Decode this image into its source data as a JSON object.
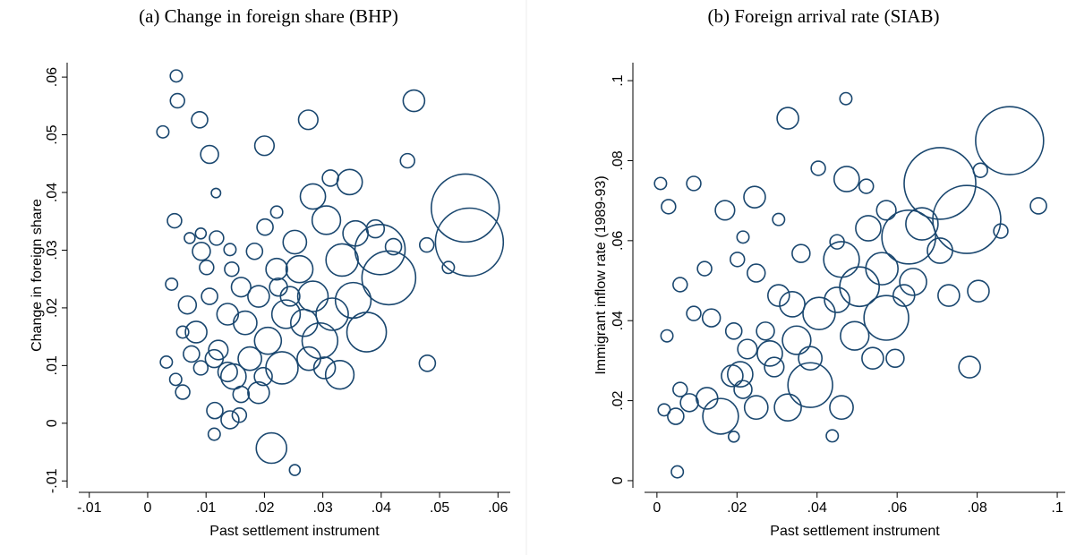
{
  "chart_data": [
    {
      "type": "bubble",
      "title": "(a) Change in foreign share (BHP)",
      "x_label": "Past settlement instrument",
      "y_label": "Change in foreign share",
      "color": "#1a476f",
      "xlim": [
        -0.0118,
        0.0621
      ],
      "ylim": [
        -0.0112,
        0.0625
      ],
      "xticks": [
        {
          "value": -0.01,
          "label": "-.01"
        },
        0,
        {
          "value": 0.01,
          "label": ".01"
        },
        {
          "value": 0.02,
          "label": ".02"
        },
        {
          "value": 0.03,
          "label": ".03"
        },
        {
          "value": 0.04,
          "label": ".04"
        },
        {
          "value": 0.05,
          "label": ".05"
        },
        {
          "value": 0.06,
          "label": ".06"
        }
      ],
      "yticks": [
        {
          "value": -0.01,
          "label": "-.01"
        },
        0,
        {
          "value": 0.01,
          "label": ".01"
        },
        {
          "value": 0.02,
          "label": ".02"
        },
        {
          "value": 0.03,
          "label": ".03"
        },
        {
          "value": 0.04,
          "label": ".04"
        },
        {
          "value": 0.05,
          "label": ".05"
        },
        {
          "value": 0.06,
          "label": ".06"
        }
      ],
      "x": [
        0.0049,
        0.0051,
        0.0026,
        0.0089,
        0.0106,
        0.02,
        0.0275,
        0.0456,
        0.0445,
        0.0117,
        0.0046,
        0.0201,
        0.0221,
        0.0346,
        0.0283,
        0.0313,
        0.0544,
        0.0551,
        0.0398,
        0.0413,
        0.0478,
        0.0515,
        0.0479,
        0.0252,
        0.0212,
        0.0115,
        0.0114,
        0.0141,
        0.0157,
        0.019,
        0.0041,
        0.0032,
        0.0048,
        0.006,
        0.0072,
        0.0092,
        0.0101,
        0.0118,
        0.0141,
        0.0091,
        0.0068,
        0.0083,
        0.0106,
        0.0121,
        0.0147,
        0.0167,
        0.019,
        0.0206,
        0.023,
        0.0237,
        0.026,
        0.0283,
        0.0295,
        0.0316,
        0.0333,
        0.0329,
        0.0303,
        0.0352,
        0.0375,
        0.0356,
        0.0306,
        0.0252,
        0.0221,
        0.0183,
        0.016,
        0.0137,
        0.0114,
        0.0091,
        0.006,
        0.0075,
        0.0175,
        0.0198,
        0.0268,
        0.0276,
        0.016,
        0.0137,
        0.0224,
        0.0244,
        0.0144,
        0.039,
        0.0421
      ],
      "y": [
        0.0602,
        0.0559,
        0.0505,
        0.0526,
        0.0466,
        0.0481,
        0.0526,
        0.0559,
        0.0455,
        0.0399,
        0.0351,
        0.034,
        0.0366,
        0.0418,
        0.0393,
        0.0425,
        0.0373,
        0.0314,
        0.0301,
        0.0252,
        0.0309,
        0.027,
        0.0104,
        -0.0081,
        -0.0043,
        0.0022,
        -0.0019,
        0.0006,
        0.0014,
        0.0053,
        0.0241,
        0.0106,
        0.0076,
        0.0054,
        0.0321,
        0.0298,
        0.027,
        0.0321,
        0.0301,
        0.0329,
        0.0205,
        0.0158,
        0.022,
        0.0127,
        0.0081,
        0.0174,
        0.022,
        0.0143,
        0.0096,
        0.0189,
        0.0267,
        0.022,
        0.0143,
        0.0189,
        0.0283,
        0.0084,
        0.0096,
        0.0213,
        0.0158,
        0.0329,
        0.0352,
        0.0314,
        0.0267,
        0.0298,
        0.0236,
        0.0189,
        0.0112,
        0.0096,
        0.0158,
        0.012,
        0.0112,
        0.0081,
        0.0174,
        0.0112,
        0.005,
        0.0089,
        0.0236,
        0.022,
        0.0267,
        0.0337,
        0.0306
      ],
      "sizes": [
        5,
        7,
        5,
        9,
        11,
        13,
        13,
        16,
        7,
        3,
        7,
        9,
        5,
        22,
        22,
        9,
        160,
        160,
        87,
        100,
        7,
        5,
        9,
        4,
        32,
        9,
        5,
        11,
        7,
        16,
        5,
        5,
        5,
        7,
        4,
        11,
        7,
        7,
        5,
        4,
        11,
        16,
        9,
        13,
        22,
        19,
        16,
        25,
        36,
        28,
        25,
        32,
        44,
        36,
        36,
        28,
        16,
        44,
        54,
        22,
        28,
        19,
        16,
        9,
        13,
        16,
        11,
        7,
        5,
        9,
        19,
        11,
        25,
        19,
        9,
        13,
        11,
        13,
        7,
        11,
        9
      ]
    },
    {
      "type": "bubble",
      "title": "(b) Foreign arrival rate (SIAB)",
      "x_label": "Past settlement instrument",
      "y_label": "Immigrant inflow rate (1989-93)",
      "color": "#1a476f",
      "xlim": [
        -0.0031,
        0.102
      ],
      "ylim": [
        -0.0018,
        0.1045
      ],
      "xticks": [
        0,
        {
          "value": 0.02,
          "label": ".02"
        },
        {
          "value": 0.04,
          "label": ".04"
        },
        {
          "value": 0.06,
          "label": ".06"
        },
        {
          "value": 0.08,
          "label": ".08"
        },
        {
          "value": 0.1,
          "label": ".1"
        }
      ],
      "yticks": [
        0,
        {
          "value": 0.02,
          "label": ".02"
        },
        {
          "value": 0.04,
          "label": ".04"
        },
        {
          "value": 0.06,
          "label": ".06"
        },
        {
          "value": 0.08,
          "label": ".08"
        },
        {
          "value": 0.1,
          "label": ".1"
        }
      ],
      "x": [
        0.0881,
        0.0707,
        0.0774,
        0.0629,
        0.0327,
        0.0472,
        0.0474,
        0.0403,
        0.0244,
        0.017,
        0.0092,
        0.0009,
        0.0029,
        0.0051,
        0.0953,
        0.0803,
        0.0781,
        0.0859,
        0.0808,
        0.0528,
        0.0573,
        0.0523,
        0.0461,
        0.0438,
        0.0461,
        0.0506,
        0.0562,
        0.0573,
        0.064,
        0.0707,
        0.0662,
        0.0405,
        0.0383,
        0.0327,
        0.0349,
        0.0304,
        0.0282,
        0.0248,
        0.0215,
        0.0159,
        0.0188,
        0.0125,
        0.0081,
        0.0047,
        0.0018,
        0.0058,
        0.0025,
        0.0092,
        0.0136,
        0.0192,
        0.0226,
        0.0271,
        0.0192,
        0.0383,
        0.045,
        0.0494,
        0.0539,
        0.0595,
        0.0617,
        0.0729,
        0.0248,
        0.0201,
        0.036,
        0.045,
        0.0058,
        0.0119,
        0.0215,
        0.0304,
        0.0208,
        0.0293,
        0.0338
      ],
      "y": [
        0.085,
        0.0743,
        0.0653,
        0.0609,
        0.0906,
        0.0955,
        0.0754,
        0.0781,
        0.0709,
        0.0676,
        0.0743,
        0.0743,
        0.0685,
        0.0022,
        0.0687,
        0.0474,
        0.0284,
        0.0624,
        0.0776,
        0.0631,
        0.0676,
        0.0736,
        0.0183,
        0.0112,
        0.0553,
        0.0485,
        0.053,
        0.0407,
        0.0497,
        0.0575,
        0.0642,
        0.0418,
        0.0239,
        0.0183,
        0.0351,
        0.0463,
        0.0318,
        0.0183,
        0.0228,
        0.0161,
        0.0262,
        0.0206,
        0.0195,
        0.0161,
        0.0177,
        0.0228,
        0.0362,
        0.0418,
        0.0407,
        0.0374,
        0.0329,
        0.0374,
        0.011,
        0.0306,
        0.0452,
        0.0362,
        0.0306,
        0.0306,
        0.0463,
        0.0463,
        0.0519,
        0.0553,
        0.0568,
        0.0597,
        0.049,
        0.053,
        0.0609,
        0.0653,
        0.0266,
        0.0284,
        0.0441
      ],
      "sizes": [
        160,
        178,
        160,
        100,
        16,
        5,
        22,
        7,
        16,
        13,
        7,
        5,
        7,
        5,
        9,
        16,
        16,
        7,
        7,
        22,
        13,
        7,
        19,
        5,
        44,
        54,
        36,
        69,
        25,
        22,
        36,
        36,
        69,
        25,
        28,
        16,
        22,
        19,
        11,
        44,
        16,
        16,
        11,
        9,
        5,
        7,
        5,
        7,
        11,
        9,
        13,
        11,
        4,
        19,
        22,
        28,
        16,
        11,
        16,
        16,
        11,
        7,
        11,
        7,
        7,
        7,
        5,
        5,
        22,
        13,
        22
      ]
    }
  ]
}
